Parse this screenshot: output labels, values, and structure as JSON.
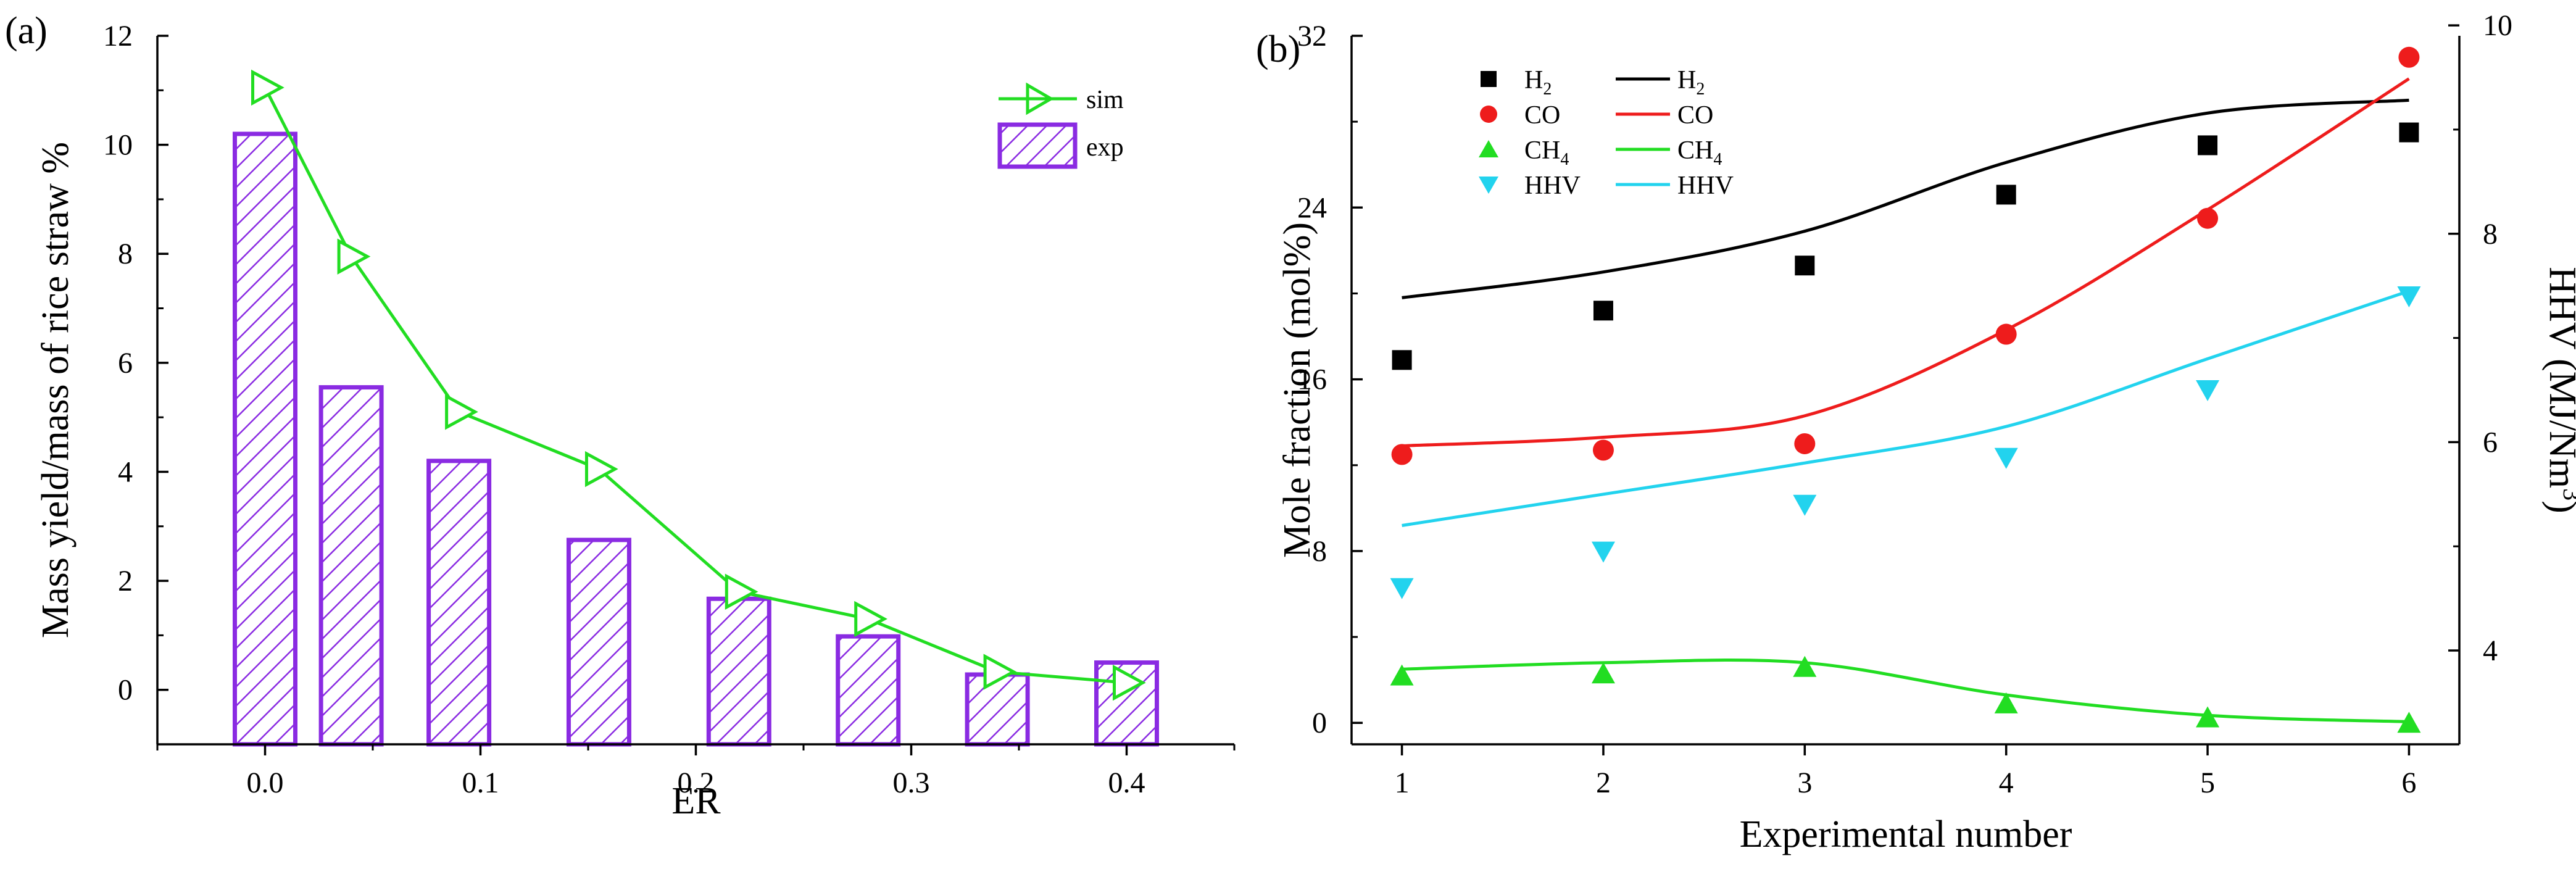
{
  "chart_data": [
    {
      "panel_label": "(a)",
      "type": "bar",
      "xlabel": "ER",
      "ylabel": "Mass yield/mass of rice straw %",
      "xlim": [
        -0.05,
        0.45
      ],
      "ylim": [
        -1,
        12
      ],
      "x_ticks": [
        0.0,
        0.1,
        0.2,
        0.3,
        0.4
      ],
      "x_tick_labels": [
        "0.0",
        "0.1",
        "0.2",
        "0.3",
        "0.4"
      ],
      "y_ticks": [
        0,
        2,
        4,
        6,
        8,
        10,
        12
      ],
      "y_tick_labels": [
        "0",
        "2",
        "4",
        "6",
        "8",
        "10",
        "12"
      ],
      "series": [
        {
          "name": "exp",
          "type": "bar",
          "color": "#8a2be2",
          "x": [
            0.0,
            0.04,
            0.09,
            0.155,
            0.22,
            0.28,
            0.34,
            0.4
          ],
          "values": [
            10.2,
            5.55,
            4.2,
            2.75,
            1.67,
            0.98,
            0.28,
            0.5
          ]
        },
        {
          "name": "sim",
          "type": "line",
          "marker": "triangle-right-open",
          "color": "#22dd22",
          "x": [
            0.0,
            0.04,
            0.09,
            0.155,
            0.22,
            0.28,
            0.34,
            0.4
          ],
          "values": [
            11.05,
            7.95,
            5.1,
            4.05,
            1.8,
            1.3,
            0.33,
            0.13
          ]
        }
      ],
      "legend": {
        "position": "top-right",
        "entries": [
          "sim",
          "exp"
        ]
      }
    },
    {
      "panel_label": "(b)",
      "type": "scatter",
      "xlabel": "Experimental number",
      "ylabel": "Mole fraction (mol%)",
      "ylabel_right": {
        "prefix": "HHV (MJ/Nm",
        "sup": "3",
        "suffix": ")"
      },
      "x": [
        1,
        2,
        3,
        4,
        5,
        6
      ],
      "x_tick_labels": [
        "1",
        "2",
        "3",
        "4",
        "5",
        "6"
      ],
      "xlim": [
        0.75,
        6.25
      ],
      "ylim": [
        -1,
        32
      ],
      "y_ticks": [
        0,
        8,
        16,
        24,
        32
      ],
      "y_tick_labels": [
        "0",
        "8",
        "16",
        "24",
        "32"
      ],
      "ylim_right": [
        3.1,
        9.9
      ],
      "y_ticks_right": [
        4,
        6,
        8,
        10
      ],
      "y_tick_labels_right": [
        "4",
        "6",
        "8",
        "10"
      ],
      "series": [
        {
          "name": "H2",
          "label": {
            "base": "H",
            "sub": "2"
          },
          "axis": "left",
          "color": "#000000",
          "marker": "square",
          "values": [
            16.9,
            19.2,
            21.3,
            24.6,
            26.9,
            27.5
          ],
          "fit": [
            [
              1,
              19.8
            ],
            [
              2,
              21.0
            ],
            [
              3,
              22.9
            ],
            [
              4,
              26.1
            ],
            [
              5,
              28.4
            ],
            [
              6,
              29.0
            ]
          ]
        },
        {
          "name": "CO",
          "label": {
            "base": "CO",
            "sub": ""
          },
          "axis": "left",
          "color": "#ee1c1c",
          "marker": "circle",
          "values": [
            12.5,
            12.7,
            13.0,
            18.1,
            23.5,
            31.0
          ],
          "fit": [
            [
              1,
              12.9
            ],
            [
              2,
              13.3
            ],
            [
              3,
              14.3
            ],
            [
              4,
              18.3
            ],
            [
              5,
              23.9
            ],
            [
              6,
              30.0
            ]
          ]
        },
        {
          "name": "CH4",
          "label": {
            "base": "CH",
            "sub": "4"
          },
          "axis": "left",
          "color": "#22dd22",
          "marker": "triangle-up",
          "values": [
            2.2,
            2.3,
            2.6,
            0.9,
            0.25,
            0.0
          ],
          "fit": [
            [
              1,
              2.5
            ],
            [
              2,
              2.8
            ],
            [
              3,
              2.8
            ],
            [
              4,
              1.3
            ],
            [
              5,
              0.35
            ],
            [
              6,
              0.05
            ]
          ]
        },
        {
          "name": "HHV",
          "label": {
            "base": "HHV",
            "sub": ""
          },
          "axis": "right",
          "color": "#22d3ee",
          "marker": "triangle-down",
          "values": [
            4.6,
            4.95,
            5.4,
            5.85,
            6.5,
            7.4
          ],
          "fit": [
            [
              1,
              5.2
            ],
            [
              2,
              5.5
            ],
            [
              3,
              5.8
            ],
            [
              4,
              6.15
            ],
            [
              5,
              6.8
            ],
            [
              6,
              7.45
            ]
          ]
        }
      ],
      "legend": {
        "position": "top-left"
      }
    }
  ]
}
